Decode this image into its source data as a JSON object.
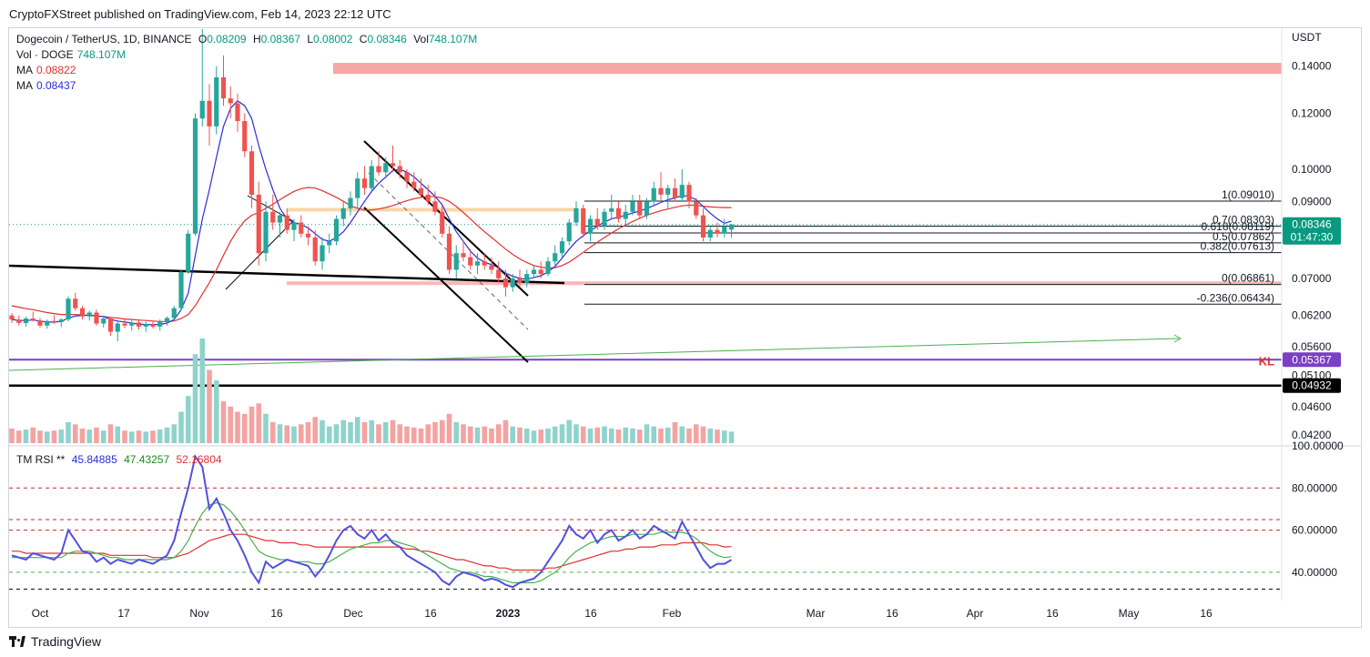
{
  "publisher": "CryptoFXStreet published on TradingView.com, Feb 14, 2023 22:12 UTC",
  "header": {
    "symbol": "Dogecoin / TetherUS, 1D, BINANCE",
    "open_label": "O",
    "open": "0.08209",
    "high_label": "H",
    "high": "0.08367",
    "low_label": "L",
    "low": "0.08002",
    "close_label": "C",
    "close": "0.08346",
    "vol_label": "Vol",
    "vol": "748.107M"
  },
  "legend": {
    "vol_label": "Vol · DOGE",
    "vol_value": "748.107M",
    "ma1_label": "MA",
    "ma1_value": "0.08822",
    "ma1_color": "#e03030",
    "ma2_label": "MA",
    "ma2_value": "0.08437",
    "ma2_color": "#2b2bd6"
  },
  "rsi_legend": {
    "label": "TM RSI **",
    "v1": "45.84885",
    "v2": "47.43257",
    "v3": "52.16804"
  },
  "currency": "USDT",
  "branding": "TradingView",
  "colors": {
    "up": "#26a69a",
    "down": "#ef5350",
    "vol_up": "#8fd3cc",
    "vol_down": "#f4a3a1",
    "green_badge": "#089981",
    "kl": "#7a3fc4"
  },
  "chart_data": {
    "type": "candlestick",
    "title": "Dogecoin / TetherUS, 1D, BINANCE",
    "xlabel": "",
    "ylabel": "USDT",
    "y_scale": "log",
    "ylim": [
      0.0405,
      0.158
    ],
    "x_ticks": [
      "Oct",
      "17",
      "Nov",
      "16",
      "Dec",
      "16",
      "2023",
      "16",
      "Feb",
      "Mar",
      "16",
      "Apr",
      "16",
      "May",
      "16"
    ],
    "y_ticks": [
      "0.14000",
      "0.12000",
      "0.10000",
      "0.09000",
      "0.07000",
      "0.06200",
      "0.05600",
      "0.05100",
      "0.04600",
      "0.04200"
    ],
    "price_labels": [
      {
        "text": "0.08346",
        "sub": "01:47:30",
        "value": 0.08346,
        "color": "#089981"
      },
      {
        "text": "0.05367",
        "value": 0.05367,
        "color": "#7a3fc4"
      },
      {
        "text": "0.04932",
        "value": 0.04932,
        "color": "#000000"
      }
    ],
    "key_level_label": "KL",
    "fib_levels": [
      {
        "label": "1(0.09010)",
        "value": 0.0901
      },
      {
        "label": "0.7(0.08303)",
        "value": 0.08303
      },
      {
        "label": "0.618(0.08119)",
        "value": 0.08119
      },
      {
        "label": "0.5(0.07862)",
        "value": 0.07862
      },
      {
        "label": "0.382(0.07613)",
        "value": 0.07613
      },
      {
        "label": "0(0.06861)",
        "value": 0.06861
      },
      {
        "label": "-0.236(0.06434)",
        "value": 0.06434
      }
    ],
    "supply_zone": [
      0.1365,
      0.1415
    ],
    "demand_line": 0.0689,
    "candles": [
      [
        0.062,
        0.0625,
        0.0605,
        0.0612
      ],
      [
        0.0612,
        0.062,
        0.06,
        0.0605
      ],
      [
        0.0605,
        0.0618,
        0.0598,
        0.0614
      ],
      [
        0.0614,
        0.0628,
        0.0608,
        0.061
      ],
      [
        0.061,
        0.0615,
        0.0596,
        0.06
      ],
      [
        0.06,
        0.0612,
        0.0594,
        0.0609
      ],
      [
        0.0609,
        0.0621,
        0.0603,
        0.0607
      ],
      [
        0.0607,
        0.0614,
        0.0597,
        0.0612
      ],
      [
        0.0612,
        0.066,
        0.0608,
        0.0655
      ],
      [
        0.0655,
        0.0668,
        0.063,
        0.0635
      ],
      [
        0.0635,
        0.064,
        0.0612,
        0.0618
      ],
      [
        0.0618,
        0.063,
        0.061,
        0.0626
      ],
      [
        0.0626,
        0.0632,
        0.06,
        0.0604
      ],
      [
        0.0604,
        0.062,
        0.0596,
        0.0614
      ],
      [
        0.0614,
        0.0618,
        0.058,
        0.0588
      ],
      [
        0.0588,
        0.061,
        0.057,
        0.0604
      ],
      [
        0.0604,
        0.0615,
        0.0595,
        0.06
      ],
      [
        0.06,
        0.061,
        0.059,
        0.0606
      ],
      [
        0.0606,
        0.0612,
        0.0592,
        0.0598
      ],
      [
        0.0598,
        0.0608,
        0.0588,
        0.0603
      ],
      [
        0.0603,
        0.061,
        0.0594,
        0.0598
      ],
      [
        0.0598,
        0.0612,
        0.059,
        0.0607
      ],
      [
        0.0607,
        0.0618,
        0.06,
        0.0615
      ],
      [
        0.0615,
        0.064,
        0.061,
        0.0635
      ],
      [
        0.0635,
        0.072,
        0.063,
        0.0715
      ],
      [
        0.0715,
        0.082,
        0.071,
        0.081
      ],
      [
        0.081,
        0.12,
        0.0805,
        0.118
      ],
      [
        0.118,
        0.158,
        0.115,
        0.125
      ],
      [
        0.125,
        0.132,
        0.108,
        0.115
      ],
      [
        0.115,
        0.14,
        0.112,
        0.135
      ],
      [
        0.135,
        0.145,
        0.123,
        0.126
      ],
      [
        0.126,
        0.131,
        0.118,
        0.124
      ],
      [
        0.124,
        0.128,
        0.113,
        0.117
      ],
      [
        0.117,
        0.12,
        0.104,
        0.106
      ],
      [
        0.106,
        0.108,
        0.088,
        0.092
      ],
      [
        0.092,
        0.096,
        0.073,
        0.076
      ],
      [
        0.076,
        0.09,
        0.074,
        0.087
      ],
      [
        0.087,
        0.092,
        0.082,
        0.084
      ],
      [
        0.084,
        0.087,
        0.08,
        0.086
      ],
      [
        0.086,
        0.088,
        0.081,
        0.082
      ],
      [
        0.082,
        0.085,
        0.079,
        0.084
      ],
      [
        0.084,
        0.086,
        0.08,
        0.081
      ],
      [
        0.081,
        0.083,
        0.078,
        0.08
      ],
      [
        0.08,
        0.082,
        0.073,
        0.074
      ],
      [
        0.074,
        0.08,
        0.072,
        0.078
      ],
      [
        0.078,
        0.081,
        0.076,
        0.079
      ],
      [
        0.079,
        0.086,
        0.078,
        0.085
      ],
      [
        0.085,
        0.09,
        0.083,
        0.088
      ],
      [
        0.088,
        0.093,
        0.086,
        0.091
      ],
      [
        0.091,
        0.099,
        0.088,
        0.097
      ],
      [
        0.097,
        0.101,
        0.092,
        0.094
      ],
      [
        0.094,
        0.103,
        0.093,
        0.101
      ],
      [
        0.101,
        0.106,
        0.098,
        0.099
      ],
      [
        0.099,
        0.104,
        0.097,
        0.102
      ],
      [
        0.102,
        0.108,
        0.099,
        0.101
      ],
      [
        0.101,
        0.103,
        0.097,
        0.099
      ],
      [
        0.099,
        0.1,
        0.094,
        0.096
      ],
      [
        0.096,
        0.099,
        0.093,
        0.094
      ],
      [
        0.094,
        0.097,
        0.091,
        0.092
      ],
      [
        0.092,
        0.095,
        0.089,
        0.09
      ],
      [
        0.09,
        0.093,
        0.086,
        0.087
      ],
      [
        0.087,
        0.089,
        0.08,
        0.081
      ],
      [
        0.081,
        0.083,
        0.071,
        0.072
      ],
      [
        0.072,
        0.078,
        0.07,
        0.076
      ],
      [
        0.076,
        0.079,
        0.074,
        0.075
      ],
      [
        0.075,
        0.077,
        0.072,
        0.073
      ],
      [
        0.073,
        0.076,
        0.071,
        0.074
      ],
      [
        0.074,
        0.076,
        0.072,
        0.073
      ],
      [
        0.073,
        0.075,
        0.071,
        0.072
      ],
      [
        0.072,
        0.074,
        0.069,
        0.07
      ],
      [
        0.07,
        0.072,
        0.066,
        0.068
      ],
      [
        0.068,
        0.071,
        0.067,
        0.07
      ],
      [
        0.07,
        0.072,
        0.068,
        0.069
      ],
      [
        0.069,
        0.072,
        0.068,
        0.071
      ],
      [
        0.071,
        0.073,
        0.07,
        0.072
      ],
      [
        0.072,
        0.074,
        0.07,
        0.071
      ],
      [
        0.071,
        0.075,
        0.0705,
        0.074
      ],
      [
        0.074,
        0.078,
        0.073,
        0.076
      ],
      [
        0.076,
        0.08,
        0.075,
        0.079
      ],
      [
        0.079,
        0.085,
        0.078,
        0.084
      ],
      [
        0.084,
        0.09,
        0.083,
        0.088
      ],
      [
        0.088,
        0.089,
        0.08,
        0.081
      ],
      [
        0.081,
        0.086,
        0.079,
        0.085
      ],
      [
        0.085,
        0.088,
        0.082,
        0.083
      ],
      [
        0.083,
        0.088,
        0.082,
        0.087
      ],
      [
        0.087,
        0.092,
        0.085,
        0.088
      ],
      [
        0.088,
        0.09,
        0.084,
        0.085
      ],
      [
        0.085,
        0.089,
        0.083,
        0.087
      ],
      [
        0.087,
        0.092,
        0.086,
        0.09
      ],
      [
        0.09,
        0.092,
        0.085,
        0.086
      ],
      [
        0.086,
        0.091,
        0.085,
        0.09
      ],
      [
        0.09,
        0.096,
        0.089,
        0.094
      ],
      [
        0.094,
        0.099,
        0.09,
        0.092
      ],
      [
        0.092,
        0.095,
        0.088,
        0.094
      ],
      [
        0.094,
        0.097,
        0.09,
        0.091
      ],
      [
        0.091,
        0.1,
        0.09,
        0.095
      ],
      [
        0.095,
        0.096,
        0.088,
        0.09
      ],
      [
        0.09,
        0.091,
        0.085,
        0.086
      ],
      [
        0.086,
        0.088,
        0.079,
        0.08
      ],
      [
        0.08,
        0.083,
        0.079,
        0.082
      ],
      [
        0.082,
        0.084,
        0.08,
        0.081
      ],
      [
        0.081,
        0.085,
        0.08,
        0.083
      ],
      [
        0.08209,
        0.08367,
        0.08002,
        0.08346
      ]
    ],
    "ma_fast": [
      0.0612,
      0.061,
      0.061,
      0.0611,
      0.0609,
      0.0607,
      0.0607,
      0.0608,
      0.0615,
      0.0619,
      0.062,
      0.0621,
      0.0619,
      0.0618,
      0.0612,
      0.0609,
      0.0607,
      0.0605,
      0.0603,
      0.0602,
      0.0602,
      0.0602,
      0.0605,
      0.0612,
      0.0632,
      0.0667,
      0.0754,
      0.085,
      0.0935,
      0.104,
      0.115,
      0.122,
      0.125,
      0.123,
      0.118,
      0.108,
      0.1,
      0.0935,
      0.088,
      0.085,
      0.084,
      0.0835,
      0.0825,
      0.081,
      0.0795,
      0.079,
      0.08,
      0.0815,
      0.084,
      0.087,
      0.09,
      0.093,
      0.0955,
      0.0975,
      0.0995,
      0.1,
      0.099,
      0.0975,
      0.0955,
      0.0935,
      0.0915,
      0.089,
      0.085,
      0.0815,
      0.079,
      0.0765,
      0.0748,
      0.0738,
      0.0732,
      0.0725,
      0.0712,
      0.0705,
      0.07,
      0.0698,
      0.0702,
      0.0706,
      0.0715,
      0.0728,
      0.0748,
      0.077,
      0.079,
      0.0805,
      0.0818,
      0.083,
      0.0842,
      0.085,
      0.0855,
      0.086,
      0.0867,
      0.0872,
      0.088,
      0.0888,
      0.0897,
      0.0905,
      0.091,
      0.0918,
      0.0915,
      0.0905,
      0.0885,
      0.0866,
      0.085,
      0.0838,
      0.08437
    ],
    "ma_slow": [
      0.064,
      0.0637,
      0.0634,
      0.0632,
      0.0629,
      0.0626,
      0.0624,
      0.0622,
      0.0622,
      0.0622,
      0.0621,
      0.062,
      0.0619,
      0.0618,
      0.0616,
      0.0615,
      0.0613,
      0.0612,
      0.0611,
      0.061,
      0.0609,
      0.0608,
      0.0608,
      0.0609,
      0.0614,
      0.0622,
      0.064,
      0.0665,
      0.069,
      0.072,
      0.0755,
      0.079,
      0.082,
      0.0845,
      0.086,
      0.0868,
      0.088,
      0.0892,
      0.0905,
      0.0918,
      0.093,
      0.0938,
      0.0942,
      0.094,
      0.0932,
      0.0922,
      0.0912,
      0.09,
      0.0888,
      0.088,
      0.0875,
      0.0875,
      0.0878,
      0.0882,
      0.0888,
      0.0895,
      0.0902,
      0.0908,
      0.0912,
      0.0915,
      0.0914,
      0.091,
      0.09,
      0.0885,
      0.0868,
      0.085,
      0.0832,
      0.0815,
      0.08,
      0.0785,
      0.077,
      0.0757,
      0.0746,
      0.0737,
      0.073,
      0.0726,
      0.0724,
      0.0725,
      0.073,
      0.0738,
      0.075,
      0.0762,
      0.0775,
      0.0788,
      0.08,
      0.0812,
      0.0823,
      0.0833,
      0.0843,
      0.0852,
      0.086,
      0.0867,
      0.0873,
      0.0878,
      0.0883,
      0.0887,
      0.0889,
      0.0889,
      0.0886,
      0.0884,
      0.0883,
      0.0882,
      0.08822
    ],
    "volume": [
      14,
      12,
      13,
      15,
      12,
      11,
      12,
      13,
      20,
      18,
      14,
      13,
      15,
      12,
      18,
      16,
      12,
      11,
      12,
      11,
      12,
      13,
      15,
      18,
      30,
      45,
      85,
      100,
      70,
      60,
      40,
      35,
      30,
      28,
      35,
      38,
      28,
      20,
      18,
      17,
      16,
      18,
      20,
      25,
      22,
      16,
      18,
      22,
      20,
      25,
      20,
      22,
      18,
      20,
      22,
      18,
      16,
      15,
      14,
      18,
      20,
      22,
      28,
      20,
      18,
      16,
      15,
      16,
      14,
      18,
      22,
      16,
      15,
      14,
      12,
      13,
      14,
      16,
      18,
      22,
      18,
      16,
      14,
      15,
      16,
      14,
      13,
      15,
      14,
      13,
      18,
      16,
      14,
      15,
      20,
      16,
      14,
      18,
      16,
      14,
      13,
      12,
      11
    ],
    "rsi": [
      48,
      47,
      46,
      49,
      48,
      47,
      46,
      49,
      60,
      55,
      50,
      49,
      45,
      47,
      44,
      46,
      45,
      44,
      46,
      45,
      44,
      46,
      48,
      55,
      68,
      80,
      95,
      90,
      70,
      75,
      68,
      60,
      55,
      48,
      40,
      35,
      45,
      42,
      44,
      46,
      45,
      44,
      43,
      38,
      42,
      48,
      55,
      60,
      62,
      58,
      56,
      60,
      55,
      58,
      54,
      52,
      48,
      46,
      44,
      42,
      40,
      36,
      34,
      38,
      40,
      39,
      38,
      36,
      37,
      36,
      34,
      33,
      35,
      36,
      37,
      40,
      45,
      50,
      55,
      62,
      58,
      56,
      60,
      54,
      58,
      60,
      55,
      57,
      60,
      56,
      58,
      62,
      60,
      58,
      56,
      64,
      58,
      52,
      46,
      42,
      44,
      44,
      45.84885
    ],
    "rsi_ma": [
      47,
      47,
      47,
      47,
      47,
      47,
      47,
      47,
      49,
      50,
      50,
      50,
      49,
      48,
      47,
      47,
      46,
      46,
      46,
      46,
      46,
      46,
      46,
      47,
      50,
      55,
      62,
      68,
      72,
      73,
      72,
      69,
      65,
      60,
      55,
      50,
      48,
      47,
      46,
      46,
      45,
      45,
      45,
      44,
      44,
      45,
      47,
      49,
      51,
      52,
      53,
      54,
      54,
      55,
      55,
      54,
      53,
      52,
      50,
      48,
      46,
      44,
      42,
      41,
      40,
      40,
      39,
      38,
      38,
      37,
      36,
      35,
      35,
      35,
      35,
      36,
      38,
      40,
      43,
      47,
      50,
      52,
      54,
      55,
      56,
      57,
      57,
      57,
      58,
      58,
      58,
      58,
      59,
      59,
      59,
      59,
      58,
      56,
      53,
      50,
      48,
      47,
      47.43257
    ],
    "rsi_slow": [
      50,
      50,
      49,
      49,
      49,
      49,
      49,
      49,
      49,
      49,
      49,
      49,
      49,
      49,
      48,
      48,
      48,
      48,
      48,
      48,
      47,
      47,
      47,
      47,
      48,
      49,
      51,
      53,
      55,
      56,
      57,
      58,
      58,
      58,
      57,
      56,
      55,
      55,
      54,
      54,
      54,
      53,
      53,
      52,
      52,
      52,
      52,
      52,
      52,
      52,
      52,
      52,
      52,
      52,
      52,
      52,
      51,
      51,
      50,
      50,
      49,
      48,
      47,
      46,
      46,
      45,
      44,
      43,
      43,
      42,
      42,
      41,
      41,
      41,
      41,
      41,
      42,
      42,
      43,
      44,
      45,
      46,
      47,
      48,
      49,
      50,
      50,
      51,
      51,
      52,
      52,
      52,
      53,
      53,
      53,
      54,
      54,
      54,
      54,
      53,
      53,
      52,
      52.16804
    ],
    "rsi_ticks": [
      "100.00000",
      "80.00000",
      "60.00000",
      "40.00000"
    ]
  }
}
